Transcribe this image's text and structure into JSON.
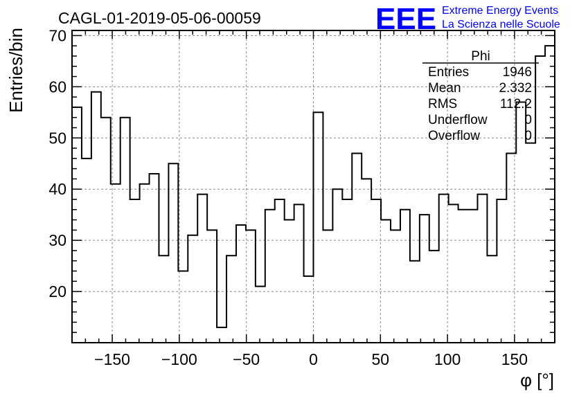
{
  "chart_data": {
    "type": "histogram",
    "title": "CAGL-01-2019-05-06-00059",
    "xlabel": "φ [°]",
    "ylabel": "Entries/bin",
    "xlim": [
      -180,
      180
    ],
    "ylim": [
      10,
      71
    ],
    "grid": true,
    "x_ticks": [
      -150,
      -100,
      -50,
      0,
      50,
      100,
      150
    ],
    "x_tick_labels": [
      "−150",
      "−100",
      "−50",
      "0",
      "50",
      "100",
      "150"
    ],
    "y_ticks": [
      20,
      30,
      40,
      50,
      60,
      70
    ],
    "y_tick_labels": [
      "20",
      "30",
      "40",
      "50",
      "60",
      "70"
    ],
    "bin_edges_start": -180,
    "bin_width": 7.2,
    "values": [
      56,
      46,
      59,
      54,
      41,
      54,
      38,
      41,
      43,
      27,
      45,
      24,
      31,
      39,
      32,
      13,
      27,
      33,
      32,
      21,
      36,
      38,
      34,
      37,
      23,
      55,
      32,
      40,
      38,
      47,
      42,
      38,
      34,
      32,
      36,
      26,
      35,
      28,
      39,
      37,
      36,
      36,
      39,
      27,
      38,
      47,
      57,
      49,
      66,
      68
    ]
  },
  "stats_box": {
    "name": "Phi",
    "rows": [
      {
        "label": "Entries",
        "value": "1946"
      },
      {
        "label": "Mean",
        "value": "2.332"
      },
      {
        "label": "RMS",
        "value": "112.2"
      },
      {
        "label": "Underflow",
        "value": "0"
      },
      {
        "label": "Overflow",
        "value": "0"
      }
    ]
  },
  "logo": {
    "mark": "EEE",
    "line1": "Extreme Energy Events",
    "line2": "La Scienza nelle Scuole",
    "color": "#0000ff"
  }
}
